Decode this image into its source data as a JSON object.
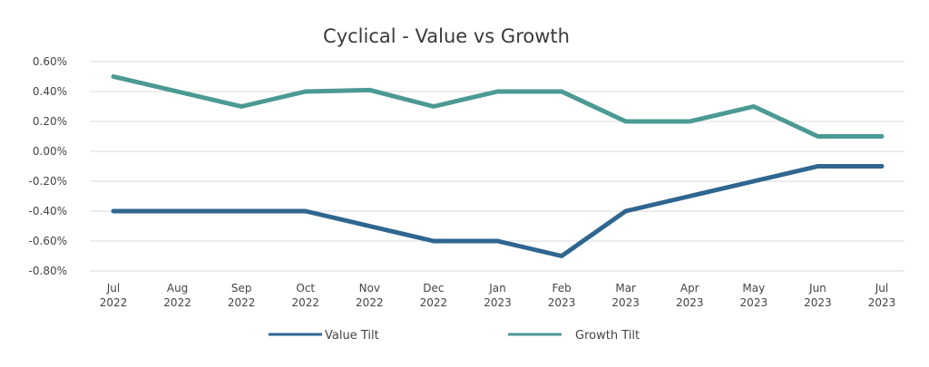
{
  "chart_data": {
    "type": "line",
    "title": "Cyclical - Value vs Growth",
    "xlabel": "",
    "ylabel": "",
    "categories": [
      [
        "Jul",
        "2022"
      ],
      [
        "Aug",
        "2022"
      ],
      [
        "Sep",
        "2022"
      ],
      [
        "Oct",
        "2022"
      ],
      [
        "Nov",
        "2022"
      ],
      [
        "Dec",
        "2022"
      ],
      [
        "Jan",
        "2023"
      ],
      [
        "Feb",
        "2023"
      ],
      [
        "Mar",
        "2023"
      ],
      [
        "Apr",
        "2023"
      ],
      [
        "May",
        "2023"
      ],
      [
        "Jun",
        "2023"
      ],
      [
        "Jul",
        "2023"
      ]
    ],
    "ylim": [
      -0.8,
      0.6
    ],
    "yticks": [
      0.6,
      0.4,
      0.2,
      0.0,
      -0.2,
      -0.4,
      -0.6,
      -0.8
    ],
    "ytick_labels": [
      "0.60%",
      "0.40%",
      "0.20%",
      "0.00%",
      "-0.20%",
      "-0.40%",
      "-0.60%",
      "-0.80%"
    ],
    "grid": true,
    "legend_position": "bottom",
    "series": [
      {
        "name": "Value Tilt",
        "color": "#2f6690",
        "values": [
          -0.4,
          -0.4,
          -0.4,
          -0.4,
          -0.5,
          -0.6,
          -0.6,
          -0.7,
          -0.4,
          -0.3,
          -0.2,
          -0.1,
          -0.1
        ]
      },
      {
        "name": "Growth Tilt",
        "color": "#4b9a93",
        "values": [
          0.5,
          0.4,
          0.3,
          0.4,
          0.41,
          0.3,
          0.4,
          0.4,
          0.2,
          0.2,
          0.3,
          0.1,
          0.1
        ]
      }
    ]
  }
}
